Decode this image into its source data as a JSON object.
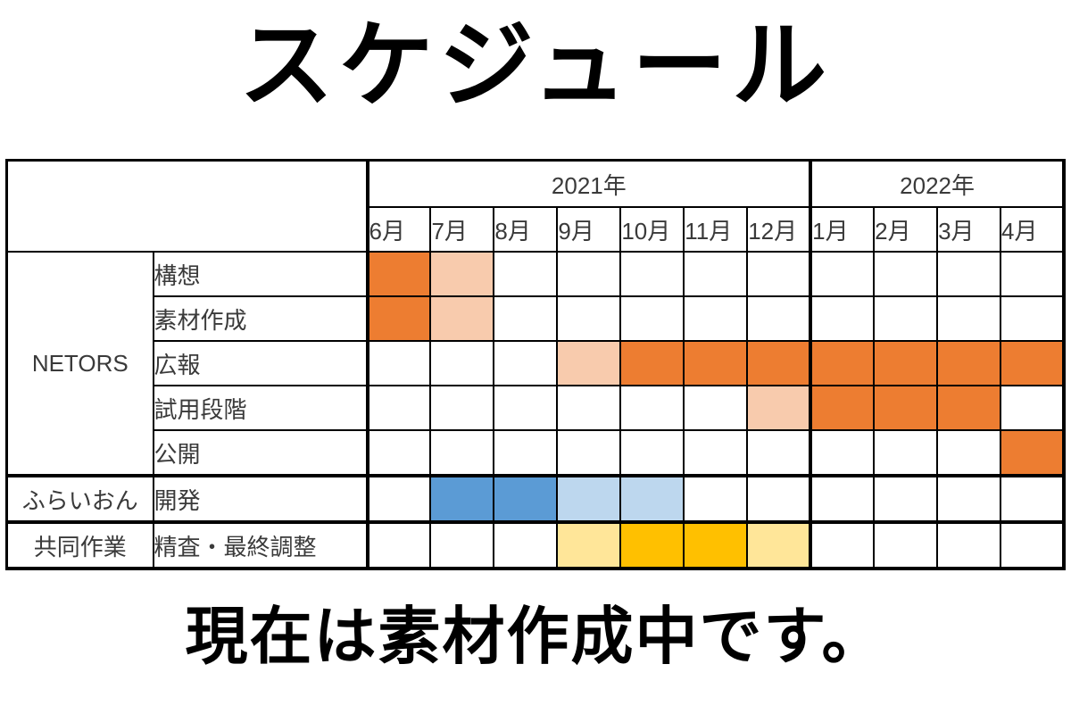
{
  "title": "スケジュール",
  "footer_note": "現在は素材作成中です。",
  "colors": {
    "orange": "#ED7D31",
    "orange_light": "#F8CBAD",
    "blue": "#5B9BD5",
    "blue_light": "#BDD7EE",
    "gold": "#FFC000",
    "gold_light": "#FFE699",
    "border": "#000000",
    "table_text": "#3a3a3a"
  },
  "chart_data": {
    "type": "table",
    "title": "スケジュール",
    "year_groups": [
      {
        "label": "2021年",
        "span": 7
      },
      {
        "label": "2022年",
        "span": 4
      }
    ],
    "months": [
      "6月",
      "7月",
      "8月",
      "9月",
      "10月",
      "11月",
      "12月",
      "1月",
      "2月",
      "3月",
      "4月"
    ],
    "legend_note": "cell values reference colors keys; empty string = no fill",
    "groups": [
      {
        "name": "NETORS",
        "tasks": [
          {
            "label": "構想",
            "cells": [
              "orange",
              "orange_light",
              "",
              "",
              "",
              "",
              "",
              "",
              "",
              "",
              ""
            ]
          },
          {
            "label": "素材作成",
            "cells": [
              "orange",
              "orange_light",
              "",
              "",
              "",
              "",
              "",
              "",
              "",
              "",
              ""
            ]
          },
          {
            "label": "広報",
            "cells": [
              "",
              "",
              "",
              "orange_light",
              "orange",
              "orange",
              "orange",
              "orange",
              "orange",
              "orange",
              "orange"
            ]
          },
          {
            "label": "試用段階",
            "cells": [
              "",
              "",
              "",
              "",
              "",
              "",
              "orange_light",
              "orange",
              "orange",
              "orange",
              ""
            ]
          },
          {
            "label": "公開",
            "cells": [
              "",
              "",
              "",
              "",
              "",
              "",
              "",
              "",
              "",
              "",
              "orange"
            ]
          }
        ]
      },
      {
        "name": "ふらいおん",
        "tasks": [
          {
            "label": "開発",
            "cells": [
              "",
              "blue",
              "blue",
              "blue_light",
              "blue_light",
              "",
              "",
              "",
              "",
              "",
              ""
            ]
          }
        ]
      },
      {
        "name": "共同作業",
        "tasks": [
          {
            "label": "精査・最終調整",
            "cells": [
              "",
              "",
              "",
              "gold_light",
              "gold",
              "gold",
              "gold_light",
              "",
              "",
              "",
              ""
            ]
          }
        ]
      }
    ]
  }
}
